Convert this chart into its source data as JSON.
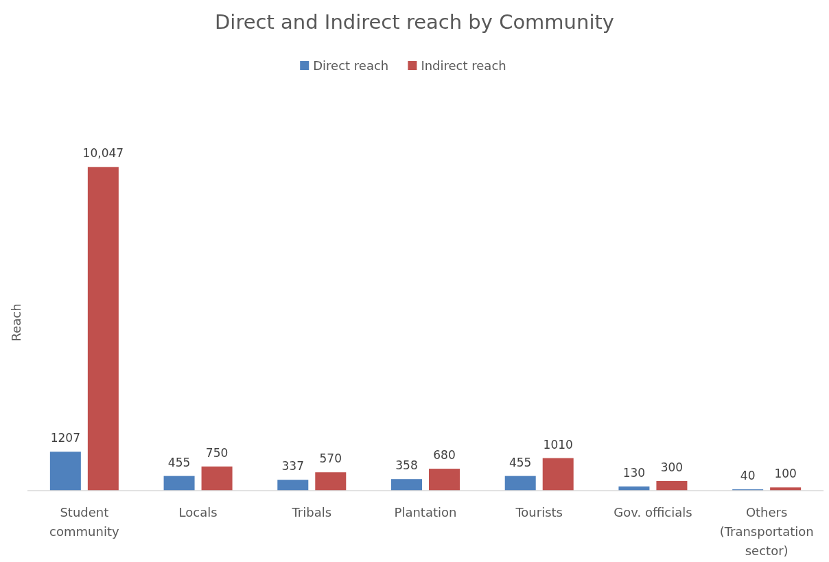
{
  "chart_data": {
    "type": "bar",
    "title": "Direct and Indirect reach by Community",
    "ylabel": "Reach",
    "categories": [
      "Student community",
      "Locals",
      "Tribals",
      "Plantation",
      "Tourists",
      "Gov. officials",
      "Others (Transportation sector)"
    ],
    "series": [
      {
        "name": "Direct reach",
        "color": "#4f81bd",
        "values": [
          1207,
          455,
          337,
          358,
          455,
          130,
          40
        ],
        "value_labels": [
          "1207",
          "455",
          "337",
          "358",
          "455",
          "130",
          "40"
        ]
      },
      {
        "name": "Indirect reach",
        "color": "#c0504d",
        "values": [
          10047,
          750,
          570,
          680,
          1010,
          300,
          100
        ],
        "value_labels": [
          "10,047",
          "750",
          "570",
          "680",
          "1010",
          "300",
          "100"
        ]
      }
    ],
    "legend": "top"
  }
}
